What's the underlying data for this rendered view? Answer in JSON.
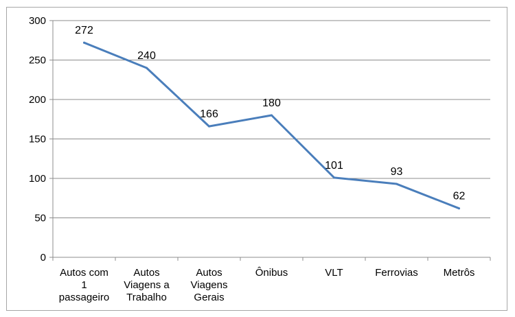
{
  "chart_data": {
    "type": "line",
    "categories": [
      [
        "Autos com",
        "1",
        "passageiro"
      ],
      [
        "Autos",
        "Viagens a",
        "Trabalho"
      ],
      [
        "Autos",
        "Viagens",
        "Gerais"
      ],
      [
        "Ônibus"
      ],
      [
        "VLT"
      ],
      [
        "Ferrovias"
      ],
      [
        "Metrôs"
      ]
    ],
    "series": [
      {
        "values": [
          272,
          240,
          166,
          180,
          101,
          93,
          62
        ]
      }
    ],
    "data_labels": [
      "272",
      "240",
      "166",
      "180",
      "101",
      "93",
      "62"
    ],
    "y_ticks": [
      "0",
      "50",
      "100",
      "150",
      "200",
      "250",
      "300"
    ],
    "ylim": [
      0,
      300
    ],
    "grid": true,
    "legend": "none",
    "line_color": "#4a7ebb",
    "title": "",
    "xlabel": "",
    "ylabel": ""
  }
}
